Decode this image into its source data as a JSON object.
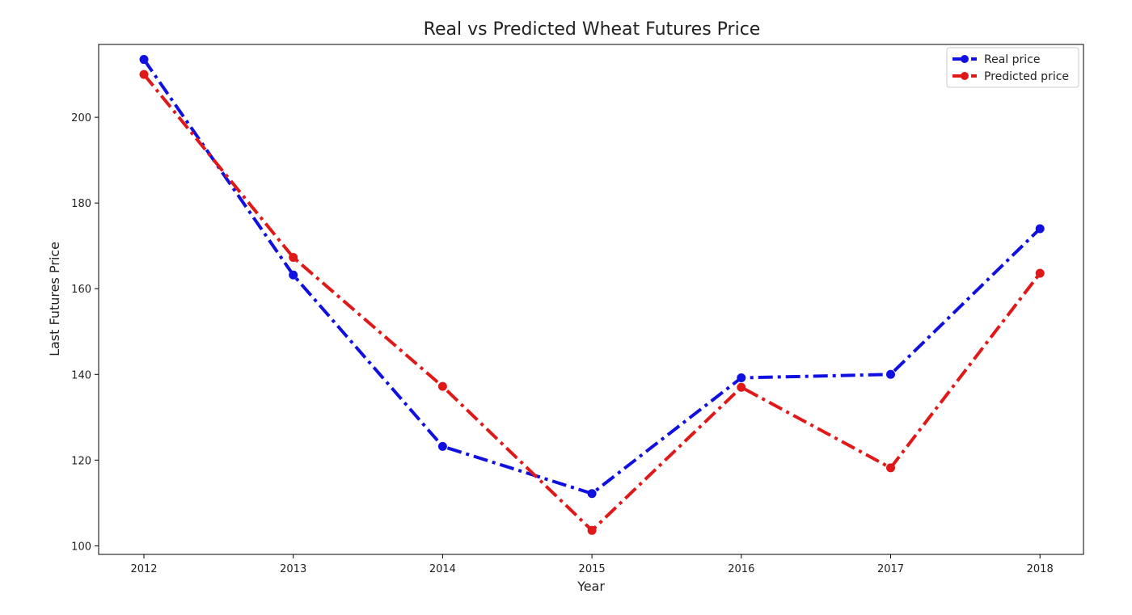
{
  "chart_data": {
    "type": "line",
    "title": "Real vs Predicted Wheat Futures Price",
    "xlabel": "Year",
    "ylabel": "Last Futures Price",
    "categories": [
      "2012",
      "2013",
      "2014",
      "2015",
      "2016",
      "2017",
      "2018"
    ],
    "yticks": [
      100,
      120,
      140,
      160,
      180,
      200
    ],
    "ylim": [
      98,
      217
    ],
    "grid": false,
    "legend_position": "top-right",
    "series": [
      {
        "name": "Real price",
        "color": "#1010e0",
        "values": [
          213.5,
          163.2,
          123.2,
          112.2,
          139.2,
          140.0,
          174.0
        ]
      },
      {
        "name": "Predicted price",
        "color": "#e01818",
        "values": [
          210.0,
          167.3,
          137.2,
          103.6,
          137.0,
          118.2,
          163.6
        ]
      }
    ]
  }
}
